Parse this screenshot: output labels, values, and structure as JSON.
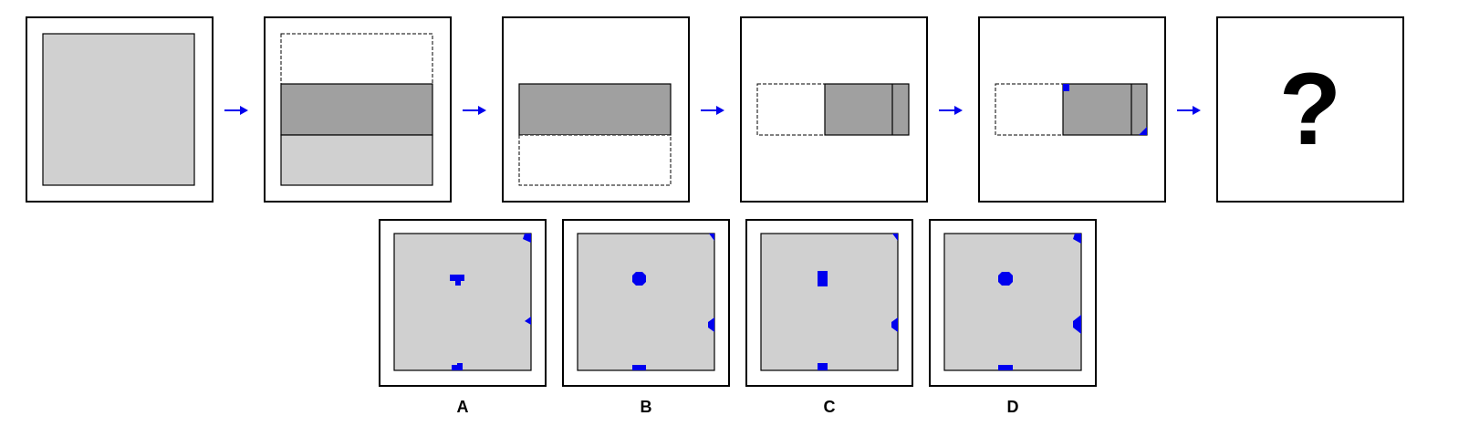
{
  "question": {
    "mark": "?"
  },
  "options": [
    {
      "label": "A"
    },
    {
      "label": "B"
    },
    {
      "label": "C"
    },
    {
      "label": "D"
    }
  ],
  "colors": {
    "paper": "#d0d0d0",
    "folded_layer": "#a0a0a0",
    "hole": "#0000ee",
    "arrow": "#0000ee"
  }
}
